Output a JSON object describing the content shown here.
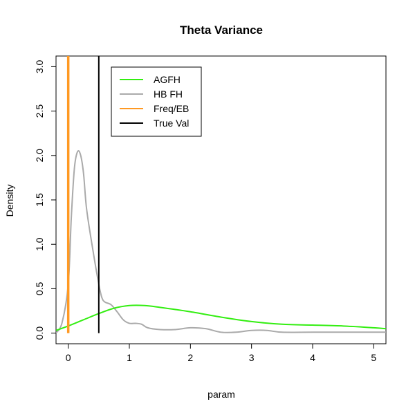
{
  "chart_data": {
    "type": "line",
    "title": "Theta Variance",
    "xlabel": "param",
    "ylabel": "Density",
    "xlim": [
      -0.2,
      5.2
    ],
    "ylim": [
      -0.12,
      3.12
    ],
    "xticks": [
      0,
      1,
      2,
      3,
      4,
      5
    ],
    "xtick_labels": [
      "0",
      "1",
      "2",
      "3",
      "4",
      "5"
    ],
    "yticks": [
      0.0,
      0.5,
      1.0,
      1.5,
      2.0,
      2.5,
      3.0
    ],
    "ytick_labels": [
      "0.0",
      "0.5",
      "1.0",
      "1.5",
      "2.0",
      "2.5",
      "3.0"
    ],
    "grid": false,
    "legend_position": "top-left",
    "legend": [
      {
        "name": "AGFH",
        "color": "#33ee11"
      },
      {
        "name": "HB FH",
        "color": "#aaaaaa"
      },
      {
        "name": "Freq/EB",
        "color": "#ff9922"
      },
      {
        "name": "True Val",
        "color": "#000000"
      }
    ],
    "series": [
      {
        "name": "AGFH",
        "color": "#33ee11",
        "x": [
          -0.2,
          0.0,
          0.25,
          0.5,
          0.75,
          1.0,
          1.25,
          1.5,
          2.0,
          2.5,
          3.0,
          3.5,
          4.0,
          4.5,
          5.0,
          5.2
        ],
        "y": [
          0.03,
          0.08,
          0.15,
          0.22,
          0.28,
          0.31,
          0.31,
          0.29,
          0.24,
          0.18,
          0.13,
          0.1,
          0.09,
          0.08,
          0.06,
          0.05
        ]
      },
      {
        "name": "HB FH",
        "color": "#aaaaaa",
        "x": [
          -0.2,
          -0.1,
          0.0,
          0.05,
          0.1,
          0.15,
          0.2,
          0.25,
          0.3,
          0.4,
          0.5,
          0.55,
          0.6,
          0.7,
          0.8,
          0.9,
          1.0,
          1.1,
          1.2,
          1.3,
          1.5,
          1.75,
          2.0,
          2.25,
          2.5,
          2.75,
          3.0,
          3.25,
          3.5,
          4.0,
          4.5,
          5.0,
          5.2
        ],
        "y": [
          0.0,
          0.12,
          0.55,
          1.3,
          1.85,
          2.04,
          2.01,
          1.8,
          1.4,
          0.95,
          0.55,
          0.4,
          0.35,
          0.32,
          0.24,
          0.15,
          0.11,
          0.11,
          0.1,
          0.06,
          0.04,
          0.04,
          0.06,
          0.05,
          0.01,
          0.01,
          0.03,
          0.03,
          0.01,
          0.01,
          0.01,
          0.01,
          0.01
        ]
      }
    ],
    "vlines": [
      {
        "name": "Freq/EB",
        "x": 0.0,
        "color": "#ff9922"
      },
      {
        "name": "True Val",
        "x": 0.5,
        "color": "#000000"
      }
    ]
  }
}
